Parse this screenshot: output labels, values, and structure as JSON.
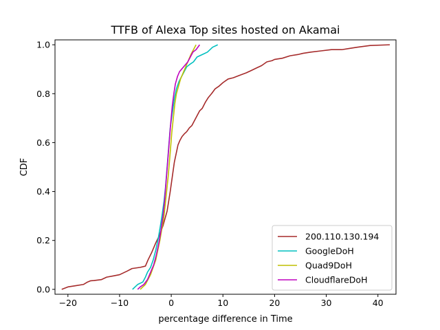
{
  "chart_data": {
    "type": "line",
    "title": "TTFB of Alexa Top sites hosted on Akamai",
    "xlabel": "percentage difference in Time",
    "ylabel": "CDF",
    "xlim": [
      -22.5,
      43.5
    ],
    "ylim": [
      -0.02,
      1.02
    ],
    "xticks": [
      -20,
      -10,
      0,
      10,
      20,
      30,
      40
    ],
    "xtick_labels": [
      "−20",
      "−10",
      "0",
      "10",
      "20",
      "30",
      "40"
    ],
    "yticks": [
      0.0,
      0.2,
      0.4,
      0.6,
      0.8,
      1.0
    ],
    "ytick_labels": [
      "0.0",
      "0.2",
      "0.4",
      "0.6",
      "0.8",
      "1.0"
    ],
    "grid": false,
    "legend_position": "lower-right",
    "series": [
      {
        "name": "200.110.130.194",
        "color": "#a52a2a",
        "x": [
          -21.2,
          -20.0,
          -18.5,
          -17.0,
          -16.2,
          -15.6,
          -15.0,
          -13.5,
          -12.5,
          -11.2,
          -10.0,
          -8.5,
          -7.6,
          -6.0,
          -5.0,
          -4.5,
          -3.8,
          -3.0,
          -2.3,
          -1.6,
          -0.8,
          -0.2,
          0.2,
          0.6,
          1.0,
          1.3,
          1.7,
          2.1,
          2.5,
          3.0,
          3.5,
          4.0,
          4.5,
          5.0,
          5.5,
          6.0,
          6.6,
          7.2,
          7.8,
          8.5,
          9.2,
          10.0,
          11.0,
          12.0,
          13.2,
          14.5,
          15.5,
          16.5,
          17.5,
          18.5,
          19.5,
          20.0,
          21.5,
          23.0,
          24.5,
          25.5,
          27.0,
          29.0,
          31.0,
          33.0,
          34.5,
          36.0,
          38.5,
          42.3
        ],
        "y": [
          0.0,
          0.01,
          0.015,
          0.02,
          0.03,
          0.035,
          0.036,
          0.04,
          0.05,
          0.055,
          0.06,
          0.075,
          0.085,
          0.09,
          0.095,
          0.12,
          0.15,
          0.19,
          0.22,
          0.26,
          0.32,
          0.4,
          0.46,
          0.52,
          0.56,
          0.59,
          0.61,
          0.625,
          0.635,
          0.645,
          0.66,
          0.67,
          0.69,
          0.71,
          0.73,
          0.74,
          0.765,
          0.785,
          0.8,
          0.82,
          0.83,
          0.845,
          0.86,
          0.865,
          0.875,
          0.885,
          0.895,
          0.905,
          0.915,
          0.93,
          0.935,
          0.94,
          0.945,
          0.955,
          0.96,
          0.965,
          0.97,
          0.975,
          0.98,
          0.98,
          0.985,
          0.99,
          0.997,
          1.0
        ]
      },
      {
        "name": "GoogleDoH",
        "color": "#00bfbf",
        "x": [
          -7.5,
          -7.0,
          -6.5,
          -5.5,
          -5.0,
          -4.6,
          -4.0,
          -3.5,
          -3.0,
          -2.5,
          -2.1,
          -1.8,
          -1.4,
          -1.1,
          -0.8,
          -0.5,
          -0.2,
          0.2,
          0.6,
          1.0,
          1.5,
          2.0,
          2.5,
          3.0,
          3.6,
          4.3,
          5.0,
          6.0,
          7.0,
          8.0,
          9.0
        ],
        "y": [
          0.0,
          0.01,
          0.02,
          0.03,
          0.05,
          0.07,
          0.09,
          0.12,
          0.16,
          0.21,
          0.26,
          0.3,
          0.36,
          0.42,
          0.5,
          0.58,
          0.66,
          0.72,
          0.78,
          0.82,
          0.85,
          0.87,
          0.89,
          0.91,
          0.92,
          0.93,
          0.95,
          0.96,
          0.97,
          0.99,
          1.0
        ]
      },
      {
        "name": "Quad9DoH",
        "color": "#bfbf00",
        "x": [
          -6.0,
          -5.5,
          -5.0,
          -4.5,
          -4.0,
          -3.5,
          -3.0,
          -2.6,
          -2.2,
          -1.8,
          -1.4,
          -1.0,
          -0.6,
          -0.2,
          0.1,
          0.4,
          0.7,
          1.0,
          1.4,
          1.8,
          2.2,
          2.6,
          3.0,
          3.4,
          3.8,
          4.3,
          4.8
        ],
        "y": [
          0.0,
          0.01,
          0.02,
          0.04,
          0.06,
          0.09,
          0.12,
          0.16,
          0.2,
          0.25,
          0.3,
          0.38,
          0.46,
          0.56,
          0.64,
          0.7,
          0.76,
          0.8,
          0.83,
          0.86,
          0.88,
          0.9,
          0.92,
          0.94,
          0.96,
          0.98,
          1.0
        ]
      },
      {
        "name": "CloudflareDoH",
        "color": "#bf00bf",
        "x": [
          -6.5,
          -6.0,
          -5.3,
          -4.6,
          -4.0,
          -3.4,
          -2.9,
          -2.4,
          -2.0,
          -1.6,
          -1.3,
          -1.0,
          -0.7,
          -0.4,
          -0.1,
          0.2,
          0.5,
          0.8,
          1.2,
          1.6,
          2.0,
          2.4,
          2.8,
          3.2,
          3.7,
          4.2,
          4.8,
          5.5
        ],
        "y": [
          0.0,
          0.01,
          0.02,
          0.04,
          0.07,
          0.1,
          0.14,
          0.19,
          0.24,
          0.3,
          0.36,
          0.44,
          0.52,
          0.6,
          0.68,
          0.75,
          0.8,
          0.84,
          0.87,
          0.89,
          0.9,
          0.91,
          0.92,
          0.93,
          0.95,
          0.97,
          0.98,
          1.0
        ]
      }
    ]
  }
}
